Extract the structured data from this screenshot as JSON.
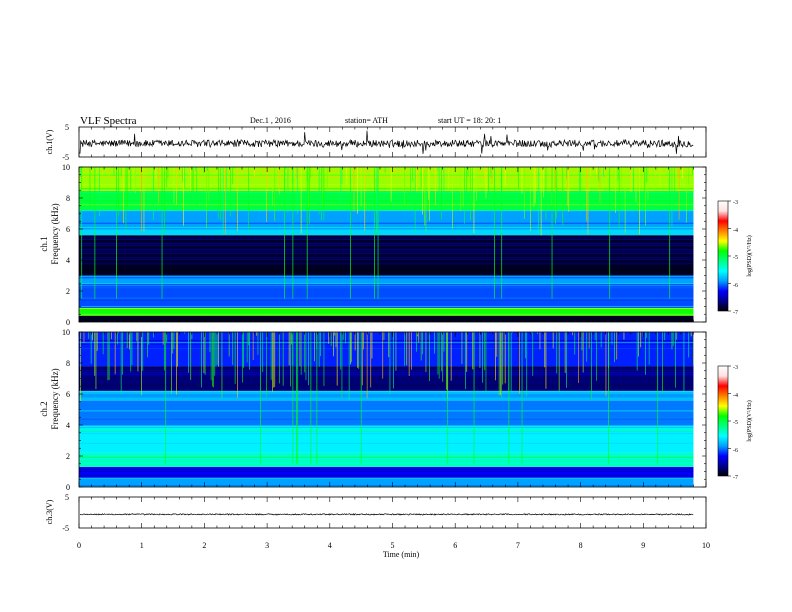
{
  "header": {
    "title": "VLF  Spectra",
    "date": "Dec.1  , 2016",
    "station": "station= ATH",
    "start": "start  UT  =    18: 20: 1"
  },
  "colors": {
    "colorbar": [
      "#000000",
      "#00008f",
      "#0000ff",
      "#00a0ff",
      "#00ffff",
      "#00ff80",
      "#00ff00",
      "#ffff00",
      "#ff8000",
      "#ff0000",
      "#ffe0e0",
      "#ffffff"
    ]
  },
  "chart_data": [
    {
      "type": "line",
      "ylabel": "ch.1(V)",
      "ylim": [
        -5,
        5
      ],
      "y_ticks": [
        "5",
        "-5"
      ],
      "xlim": [
        0,
        10
      ],
      "x_ticks": [
        "0",
        "1",
        "2",
        "3",
        "4",
        "5",
        "6",
        "7",
        "8",
        "9",
        "10"
      ],
      "signal": {
        "baseline": -0.5,
        "noise_amplitude": 1.2,
        "spike_max": 3.5
      }
    },
    {
      "type": "heatmap",
      "ylabel": "Frequency  (kHz)",
      "channel_label": "ch.1",
      "ylim": [
        0,
        10
      ],
      "y_ticks": [
        "10",
        "8",
        "6",
        "4",
        "2",
        "0"
      ],
      "xlim": [
        0,
        10
      ],
      "time_end": 9.8,
      "colorbar": {
        "label": "log(PSD)(V²/Hz)",
        "ticks": [
          "-3",
          "-4",
          "-5",
          "-6",
          "-7"
        ],
        "range": [
          -7,
          -3
        ]
      },
      "bands": [
        {
          "f0": 0,
          "f1": 0.4,
          "level": -6.9
        },
        {
          "f0": 0.4,
          "f1": 0.9,
          "level": -4.8
        },
        {
          "f0": 0.9,
          "f1": 2.5,
          "level": -6.1
        },
        {
          "f0": 2.5,
          "f1": 3.0,
          "level": -5.9
        },
        {
          "f0": 3.0,
          "f1": 5.6,
          "level": -6.9
        },
        {
          "f0": 5.6,
          "f1": 6.0,
          "level": -5.7
        },
        {
          "f0": 6.0,
          "f1": 7.2,
          "level": -5.9
        },
        {
          "f0": 7.2,
          "f1": 8.5,
          "level": -5.0
        },
        {
          "f0": 8.5,
          "f1": 10.0,
          "level": -4.6
        }
      ]
    },
    {
      "type": "heatmap",
      "ylabel": "Frequency  (kHz)",
      "channel_label": "ch.2",
      "ylim": [
        0,
        10
      ],
      "y_ticks": [
        "10",
        "8",
        "6",
        "4",
        "2",
        "0"
      ],
      "xlim": [
        0,
        10
      ],
      "time_end": 9.8,
      "colorbar": {
        "label": "log(PSD)(V²/Hz)",
        "ticks": [
          "-3",
          "-4",
          "-5",
          "-6",
          "-7"
        ],
        "range": [
          -7,
          -3
        ]
      },
      "bands": [
        {
          "f0": 0,
          "f1": 0.6,
          "level": -5.9
        },
        {
          "f0": 0.6,
          "f1": 1.3,
          "level": -6.3
        },
        {
          "f0": 1.3,
          "f1": 2.2,
          "level": -5.4
        },
        {
          "f0": 2.2,
          "f1": 4.0,
          "level": -5.6
        },
        {
          "f0": 4.0,
          "f1": 5.6,
          "level": -6.0
        },
        {
          "f0": 5.6,
          "f1": 6.2,
          "level": -5.8
        },
        {
          "f0": 6.2,
          "f1": 7.8,
          "level": -6.7
        },
        {
          "f0": 7.8,
          "f1": 10.0,
          "level": -6.2
        }
      ]
    },
    {
      "type": "line",
      "ylabel": "ch.3(V)",
      "xlabel": "Time  (min)",
      "ylim": [
        -5,
        5
      ],
      "y_ticks": [
        "5",
        "-5"
      ],
      "xlim": [
        0,
        10
      ],
      "x_ticks": [
        "0",
        "1",
        "2",
        "3",
        "4",
        "5",
        "6",
        "7",
        "8",
        "9",
        "10"
      ],
      "signal": {
        "baseline": -0.6,
        "noise_amplitude": 0.2
      }
    }
  ]
}
